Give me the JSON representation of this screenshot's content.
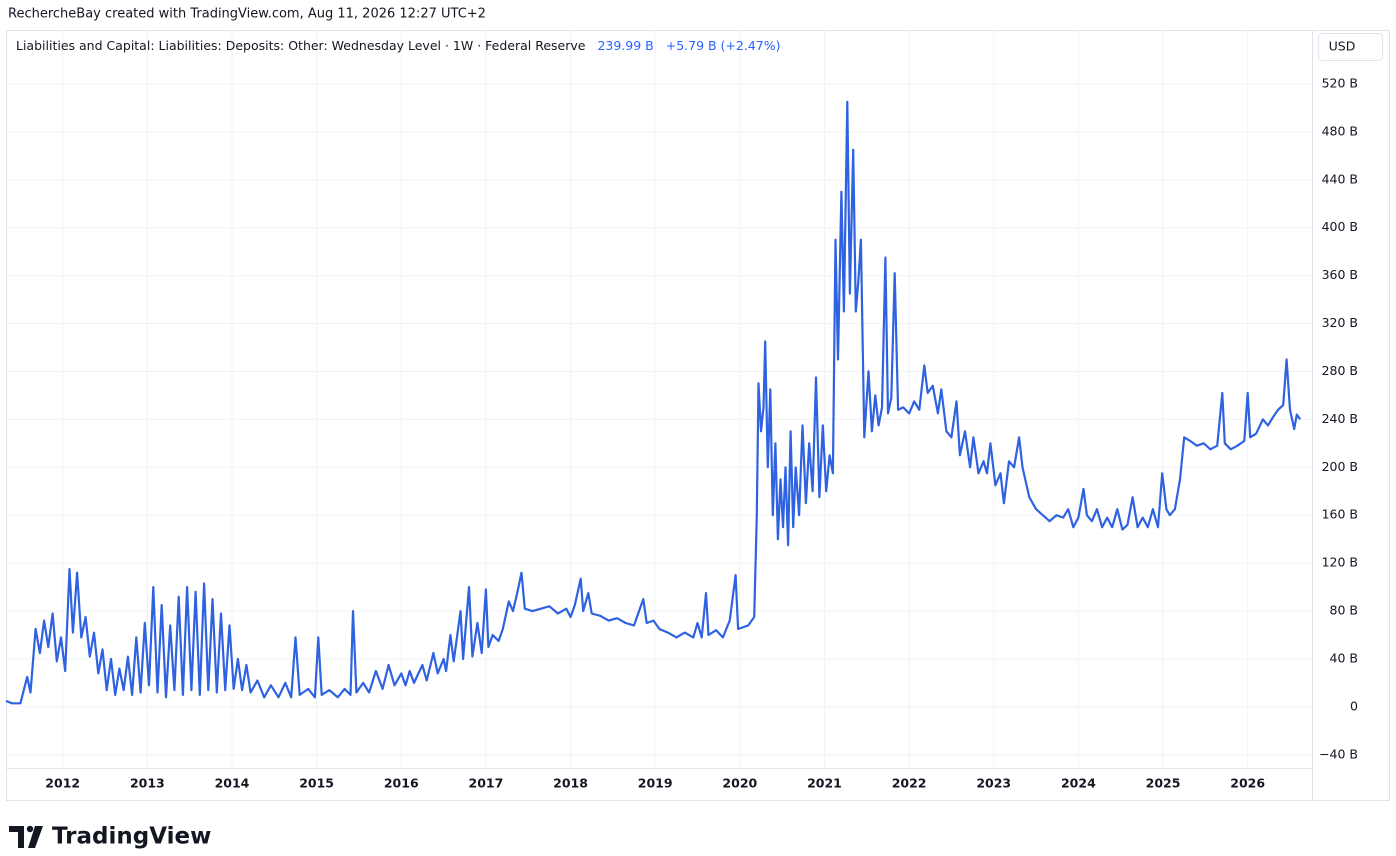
{
  "chart_data": {
    "type": "line",
    "attribution": "RechercheBay created with TradingView.com, Aug 11, 2026 12:27 UTC+2",
    "title": "Liabilities and Capital: Liabilities: Deposits: Other: Wednesday Level · 1W · Federal Reserve",
    "last_value_label": "239.99 B",
    "change_label": "+5.79 B (+2.47%)",
    "currency": "USD",
    "brand": "TradingView",
    "color": "#2f62e0",
    "grid": true,
    "xlim": [
      2011.33,
      2026.76
    ],
    "xticks": [
      2012,
      2013,
      2014,
      2015,
      2016,
      2017,
      2018,
      2019,
      2020,
      2021,
      2022,
      2023,
      2024,
      2025,
      2026
    ],
    "ylim": [
      -51,
      565
    ],
    "yticks": [
      {
        "value": -40,
        "label": "−40 B"
      },
      0,
      {
        "value": 40,
        "label": "40 B"
      },
      {
        "value": 80,
        "label": "80 B"
      },
      {
        "value": 120,
        "label": "120 B"
      },
      {
        "value": 160,
        "label": "160 B"
      },
      {
        "value": 200,
        "label": "200 B"
      },
      {
        "value": 240,
        "label": "240 B"
      },
      {
        "value": 280,
        "label": "280 B"
      },
      {
        "value": 320,
        "label": "320 B"
      },
      {
        "value": 360,
        "label": "360 B"
      },
      {
        "value": 400,
        "label": "400 B"
      },
      {
        "value": 440,
        "label": "440 B"
      },
      {
        "value": 480,
        "label": "480 B"
      },
      {
        "value": 520,
        "label": "520 B"
      }
    ],
    "x": [
      2011.33,
      2011.4,
      2011.5,
      2011.58,
      2011.62,
      2011.68,
      2011.73,
      2011.78,
      2011.83,
      2011.88,
      2011.93,
      2011.98,
      2012.03,
      2012.08,
      2012.12,
      2012.17,
      2012.22,
      2012.27,
      2012.32,
      2012.37,
      2012.42,
      2012.47,
      2012.52,
      2012.57,
      2012.62,
      2012.67,
      2012.72,
      2012.77,
      2012.82,
      2012.87,
      2012.92,
      2012.97,
      2013.02,
      2013.07,
      2013.12,
      2013.17,
      2013.22,
      2013.27,
      2013.32,
      2013.37,
      2013.42,
      2013.47,
      2013.52,
      2013.57,
      2013.62,
      2013.67,
      2013.72,
      2013.77,
      2013.82,
      2013.87,
      2013.92,
      2013.97,
      2014.02,
      2014.07,
      2014.12,
      2014.17,
      2014.22,
      2014.3,
      2014.38,
      2014.46,
      2014.55,
      2014.63,
      2014.7,
      2014.75,
      2014.8,
      2014.9,
      2014.98,
      2015.02,
      2015.06,
      2015.15,
      2015.25,
      2015.33,
      2015.4,
      2015.43,
      2015.47,
      2015.55,
      2015.62,
      2015.7,
      2015.78,
      2015.85,
      2015.92,
      2016.0,
      2016.05,
      2016.1,
      2016.15,
      2016.25,
      2016.3,
      2016.38,
      2016.43,
      2016.5,
      2016.53,
      2016.58,
      2016.62,
      2016.7,
      2016.73,
      2016.8,
      2016.84,
      2016.9,
      2016.95,
      2017.0,
      2017.03,
      2017.08,
      2017.15,
      2017.2,
      2017.27,
      2017.32,
      2017.37,
      2017.42,
      2017.46,
      2017.55,
      2017.65,
      2017.75,
      2017.85,
      2017.95,
      2018.0,
      2018.05,
      2018.12,
      2018.15,
      2018.21,
      2018.25,
      2018.35,
      2018.45,
      2018.55,
      2018.65,
      2018.75,
      2018.86,
      2018.9,
      2018.98,
      2019.05,
      2019.15,
      2019.25,
      2019.35,
      2019.45,
      2019.5,
      2019.55,
      2019.6,
      2019.63,
      2019.72,
      2019.8,
      2019.88,
      2019.95,
      2019.98,
      2020.1,
      2020.17,
      2020.2,
      2020.22,
      2020.25,
      2020.28,
      2020.3,
      2020.33,
      2020.36,
      2020.39,
      2020.42,
      2020.45,
      2020.48,
      2020.51,
      2020.54,
      2020.57,
      2020.6,
      2020.63,
      2020.66,
      2020.7,
      2020.74,
      2020.78,
      2020.82,
      2020.86,
      2020.9,
      2020.94,
      2020.98,
      2021.02,
      2021.06,
      2021.1,
      2021.13,
      2021.16,
      2021.2,
      2021.23,
      2021.27,
      2021.3,
      2021.34,
      2021.37,
      2021.4,
      2021.43,
      2021.47,
      2021.52,
      2021.56,
      2021.6,
      2021.64,
      2021.68,
      2021.72,
      2021.75,
      2021.79,
      2021.83,
      2021.87,
      2021.93,
      2022.0,
      2022.06,
      2022.12,
      2022.18,
      2022.22,
      2022.28,
      2022.34,
      2022.38,
      2022.44,
      2022.5,
      2022.56,
      2022.6,
      2022.66,
      2022.72,
      2022.76,
      2022.82,
      2022.88,
      2022.92,
      2022.96,
      2023.02,
      2023.08,
      2023.12,
      2023.18,
      2023.24,
      2023.3,
      2023.34,
      2023.42,
      2023.5,
      2023.58,
      2023.66,
      2023.74,
      2023.82,
      2023.88,
      2023.94,
      2024.0,
      2024.06,
      2024.1,
      2024.16,
      2024.22,
      2024.28,
      2024.34,
      2024.4,
      2024.46,
      2024.52,
      2024.58,
      2024.64,
      2024.7,
      2024.76,
      2024.82,
      2024.88,
      2024.94,
      2024.99,
      2025.04,
      2025.08,
      2025.14,
      2025.2,
      2025.25,
      2025.32,
      2025.4,
      2025.48,
      2025.56,
      2025.64,
      2025.7,
      2025.73,
      2025.8,
      2025.88,
      2025.96,
      2026.0,
      2026.03,
      2026.1,
      2026.18,
      2026.24,
      2026.3,
      2026.36,
      2026.42,
      2026.46,
      2026.5,
      2026.55,
      2026.58,
      2026.62
    ],
    "values": [
      5,
      3,
      3,
      25,
      12,
      65,
      45,
      72,
      50,
      78,
      38,
      58,
      30,
      115,
      62,
      112,
      58,
      75,
      42,
      62,
      28,
      48,
      14,
      40,
      10,
      32,
      14,
      42,
      10,
      58,
      12,
      70,
      18,
      100,
      12,
      85,
      8,
      68,
      14,
      92,
      10,
      100,
      14,
      96,
      10,
      103,
      14,
      90,
      12,
      78,
      14,
      68,
      15,
      40,
      14,
      35,
      12,
      22,
      8,
      18,
      8,
      20,
      8,
      58,
      10,
      15,
      8,
      58,
      10,
      14,
      8,
      15,
      10,
      80,
      12,
      20,
      12,
      30,
      15,
      35,
      18,
      28,
      18,
      30,
      20,
      35,
      22,
      45,
      28,
      40,
      30,
      60,
      38,
      80,
      40,
      100,
      42,
      70,
      45,
      98,
      50,
      60,
      55,
      65,
      88,
      80,
      95,
      112,
      82,
      80,
      82,
      84,
      78,
      82,
      75,
      85,
      107,
      80,
      95,
      78,
      76,
      72,
      74,
      70,
      68,
      90,
      70,
      72,
      65,
      62,
      58,
      62,
      58,
      70,
      58,
      95,
      60,
      64,
      58,
      72,
      110,
      65,
      68,
      75,
      160,
      270,
      230,
      250,
      305,
      200,
      265,
      160,
      220,
      140,
      190,
      150,
      200,
      135,
      230,
      150,
      200,
      160,
      235,
      170,
      220,
      180,
      275,
      175,
      235,
      180,
      210,
      195,
      390,
      290,
      430,
      330,
      505,
      345,
      465,
      330,
      355,
      390,
      225,
      280,
      230,
      260,
      235,
      250,
      375,
      245,
      258,
      362,
      248,
      250,
      245,
      255,
      248,
      285,
      262,
      268,
      245,
      265,
      230,
      225,
      255,
      210,
      230,
      200,
      225,
      195,
      205,
      195,
      220,
      185,
      195,
      170,
      205,
      200,
      225,
      200,
      175,
      165,
      160,
      155,
      160,
      158,
      165,
      150,
      158,
      182,
      160,
      155,
      165,
      150,
      158,
      150,
      165,
      148,
      152,
      175,
      150,
      158,
      150,
      165,
      150,
      195,
      165,
      160,
      165,
      190,
      225,
      222,
      218,
      220,
      215,
      218,
      262,
      220,
      215,
      218,
      222,
      262,
      225,
      228,
      240,
      235,
      242,
      248,
      252,
      290,
      248,
      232,
      244,
      239.99
    ]
  }
}
